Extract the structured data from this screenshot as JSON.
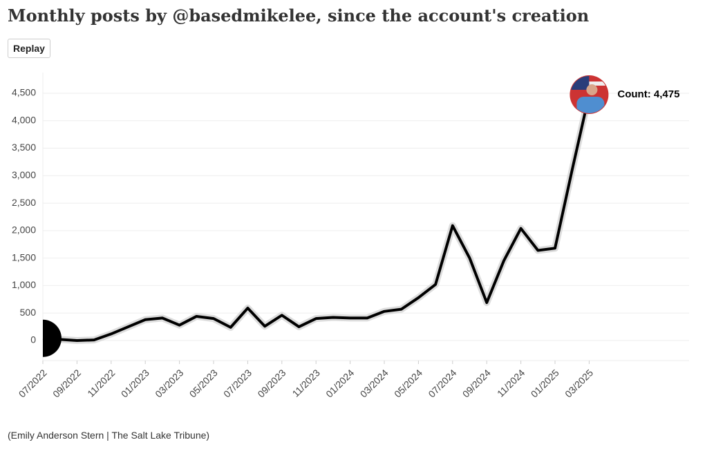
{
  "chart_data": {
    "type": "line",
    "title": "Monthly posts by @basedmikelee, since the account's creation",
    "button": "Replay",
    "source": "(Emily Anderson Stern | The Salt Lake Tribune)",
    "annotation": "Count: 4,475",
    "categories": [
      "07/2022",
      null,
      "09/2022",
      null,
      "11/2022",
      null,
      "01/2023",
      null,
      "03/2023",
      null,
      "05/2023",
      null,
      "07/2023",
      null,
      "09/2023",
      null,
      "11/2023",
      null,
      "01/2024",
      null,
      "03/2024",
      null,
      "05/2024",
      null,
      "07/2024",
      null,
      "09/2024",
      null,
      "11/2024",
      null,
      "01/2025",
      null,
      "03/2025"
    ],
    "series": [
      {
        "name": "Count",
        "color": "#000000",
        "values": [
          40,
          20,
          0,
          10,
          120,
          250,
          380,
          410,
          280,
          440,
          400,
          240,
          590,
          260,
          460,
          250,
          400,
          420,
          410,
          410,
          530,
          570,
          780,
          1020,
          2090,
          1500,
          690,
          1450,
          2040,
          1640,
          1680,
          3100,
          4475
        ]
      }
    ],
    "ylim": [
      -365,
      4877
    ],
    "yticks": [
      {
        "value": 0,
        "label": "0"
      },
      500,
      {
        "value": 1000,
        "label": "1,000"
      },
      {
        "value": 1500,
        "label": "1,500"
      },
      {
        "value": 2000,
        "label": "2,000"
      },
      {
        "value": 2500,
        "label": "2,500"
      },
      {
        "value": 3000,
        "label": "3,000"
      },
      {
        "value": 3500,
        "label": "3,500"
      },
      {
        "value": 4000,
        "label": "4,000"
      },
      {
        "value": 4500,
        "label": "4,500"
      }
    ],
    "grid": true
  }
}
